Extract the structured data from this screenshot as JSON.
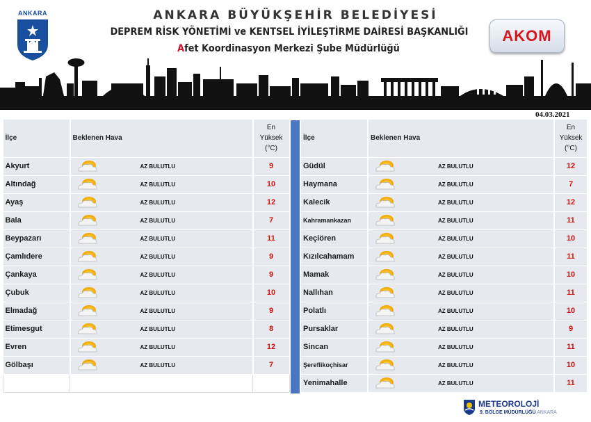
{
  "header": {
    "logo_text": "ANKARA",
    "title_line1": "ANKARA BÜYÜKŞEHİR BELEDİYESİ",
    "title_line2": "DEPREM RİSK YÖNETİMİ ve KENTSEL İYİLEŞTİRME DAİRESİ BAŞKANLIĞI",
    "title_line3_first": "A",
    "title_line3_rest": "fet Koordinasyon Merkezi Şube Müdürlüğü",
    "akom_label": "AKOM",
    "accent_red": "#c8102e",
    "accent_blue": "#1a4fa0"
  },
  "date": "04.03.2021",
  "columns": {
    "ilce": "İlçe",
    "hava": "Beklenen Hava",
    "temp_line1": "En",
    "temp_line2": "Yüksek",
    "temp_line3": "(°C)"
  },
  "weather_icon": "partly-cloudy-icon",
  "left_rows": [
    {
      "ilce": "Akyurt",
      "hava": "AZ BULUTLU",
      "temp": "9"
    },
    {
      "ilce": "Altındağ",
      "hava": "AZ BULUTLU",
      "temp": "10"
    },
    {
      "ilce": "Ayaş",
      "hava": "AZ BULUTLU",
      "temp": "12"
    },
    {
      "ilce": "Bala",
      "hava": "AZ BULUTLU",
      "temp": "7"
    },
    {
      "ilce": "Beypazarı",
      "hava": "AZ BULUTLU",
      "temp": "11"
    },
    {
      "ilce": "Çamlıdere",
      "hava": "AZ BULUTLU",
      "temp": "9"
    },
    {
      "ilce": "Çankaya",
      "hava": "AZ BULUTLU",
      "temp": "9"
    },
    {
      "ilce": "Çubuk",
      "hava": "AZ BULUTLU",
      "temp": "10"
    },
    {
      "ilce": "Elmadağ",
      "hava": "AZ BULUTLU",
      "temp": "9"
    },
    {
      "ilce": "Etimesgut",
      "hava": "AZ BULUTLU",
      "temp": "8"
    },
    {
      "ilce": "Evren",
      "hava": "AZ BULUTLU",
      "temp": "12"
    },
    {
      "ilce": "Gölbaşı",
      "hava": "AZ BULUTLU",
      "temp": "7"
    }
  ],
  "right_rows": [
    {
      "ilce": "Güdül",
      "hava": "AZ BULUTLU",
      "temp": "12"
    },
    {
      "ilce": "Haymana",
      "hava": "AZ BULUTLU",
      "temp": "7"
    },
    {
      "ilce": "Kalecik",
      "hava": "AZ BULUTLU",
      "temp": "12"
    },
    {
      "ilce": "Kahramankazan",
      "hava": "AZ BULUTLU",
      "temp": "11"
    },
    {
      "ilce": "Keçiören",
      "hava": "AZ BULUTLU",
      "temp": "10"
    },
    {
      "ilce": "Kızılcahamam",
      "hava": "AZ BULUTLU",
      "temp": "11"
    },
    {
      "ilce": "Mamak",
      "hava": "AZ BULUTLU",
      "temp": "10"
    },
    {
      "ilce": "Nallıhan",
      "hava": "AZ BULUTLU",
      "temp": "11"
    },
    {
      "ilce": "Polatlı",
      "hava": "AZ BULUTLU",
      "temp": "10"
    },
    {
      "ilce": "Pursaklar",
      "hava": "AZ BULUTLU",
      "temp": "9"
    },
    {
      "ilce": "Sincan",
      "hava": "AZ BULUTLU",
      "temp": "11"
    },
    {
      "ilce": "Şereflikoçhisar",
      "hava": "AZ BULUTLU",
      "temp": "10"
    },
    {
      "ilce": "Yenimahalle",
      "hava": "AZ BULUTLU",
      "temp": "11"
    }
  ],
  "footer": {
    "name": "METEOROLOJİ",
    "sub": "9. BÖLGE MÜDÜRLÜĞÜ",
    "city": "ANKARA"
  }
}
